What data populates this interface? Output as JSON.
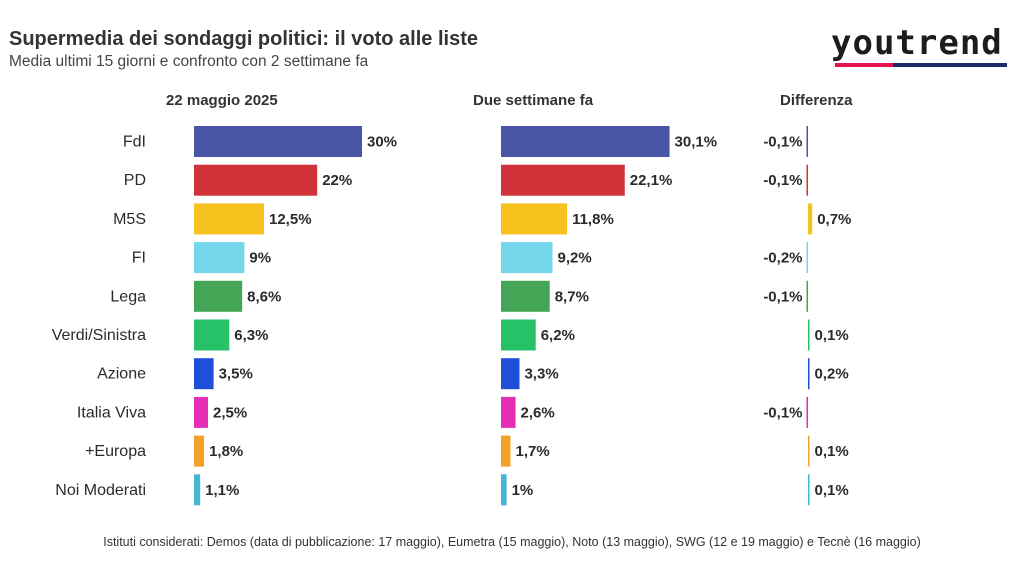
{
  "header": {
    "title": "Supermedia dei sondaggi politici: il voto alle liste",
    "subtitle": "Media ultimi 15 giorni e confronto con 2 settimane fa"
  },
  "logo": {
    "text": "youtrend",
    "colors": {
      "red": "#e4134f",
      "navy": "#1f2a6b"
    }
  },
  "columns": {
    "current": "22 maggio 2025",
    "previous": "Due settimane fa",
    "diff": "Differenza"
  },
  "chart_data": {
    "type": "bar",
    "orientation": "horizontal",
    "categories": [
      "FdI",
      "PD",
      "M5S",
      "FI",
      "Lega",
      "Verdi/Sinistra",
      "Azione",
      "Italia Viva",
      "+Europa",
      "Noi Moderati"
    ],
    "colors": [
      "#4a55a8",
      "#d0343a",
      "#f7c21d",
      "#74d6ea",
      "#44a556",
      "#27c268",
      "#1f4ed8",
      "#e62eb5",
      "#f5a02a",
      "#45b4d6"
    ],
    "series": [
      {
        "name": "22 maggio 2025",
        "values": [
          30,
          22,
          12.5,
          9,
          8.6,
          6.3,
          3.5,
          2.5,
          1.8,
          1.1
        ],
        "labels": [
          "30%",
          "22%",
          "12,5%",
          "9%",
          "8,6%",
          "6,3%",
          "3,5%",
          "2,5%",
          "1,8%",
          "1,1%"
        ]
      },
      {
        "name": "Due settimane fa",
        "values": [
          30.1,
          22.1,
          11.8,
          9.2,
          8.7,
          6.2,
          3.3,
          2.6,
          1.7,
          1
        ],
        "labels": [
          "30,1%",
          "22,1%",
          "11,8%",
          "9,2%",
          "8,7%",
          "6,2%",
          "3,3%",
          "2,6%",
          "1,7%",
          "1%"
        ]
      },
      {
        "name": "Differenza",
        "values": [
          -0.1,
          -0.1,
          0.7,
          -0.2,
          -0.1,
          0.1,
          0.2,
          -0.1,
          0.1,
          0.1
        ],
        "labels": [
          "-0,1%",
          "-0,1%",
          "0,7%",
          "-0,2%",
          "-0,1%",
          "0,1%",
          "0,2%",
          "-0,1%",
          "0,1%",
          "0,1%"
        ]
      }
    ],
    "xlim": [
      0,
      30.1
    ],
    "grid": false,
    "legend": "none"
  },
  "footnote": "Istituti considerati: Demos (data di pubblicazione: 17 maggio), Eumetra (15 maggio), Noto (13 maggio), SWG (12 e 19 maggio) e Tecnè (16 maggio)"
}
